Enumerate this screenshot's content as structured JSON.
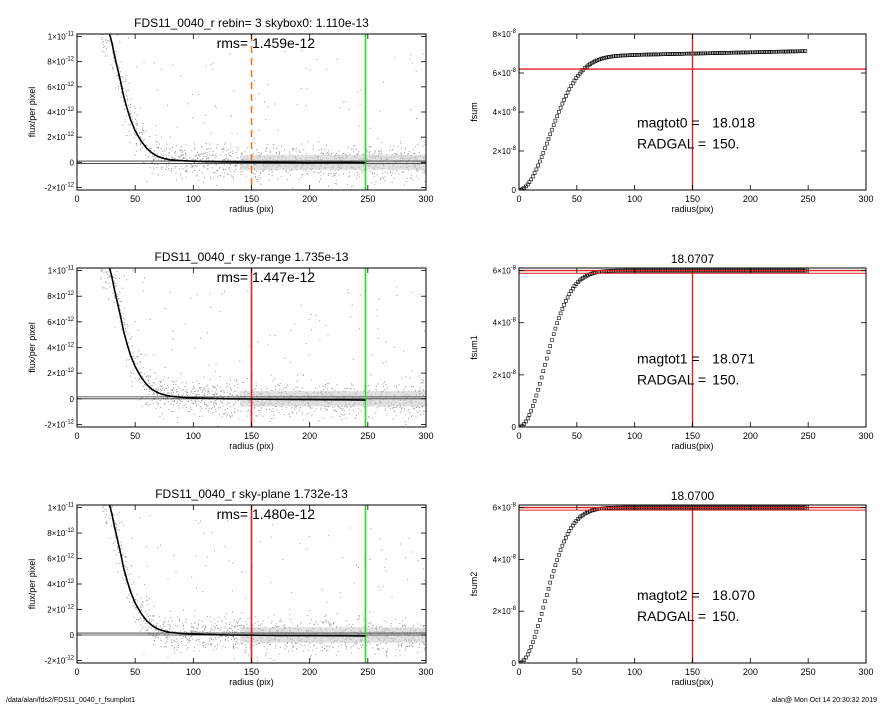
{
  "footer": {
    "path": "/data/alan/fds2/FDS11_0040_r_fsumplot1",
    "stamp": "alan@  Mon Oct 14 20:30:32 2019"
  },
  "colors": {
    "scatter": "#9a9a9a",
    "profile": "#000000",
    "red": "#dd2222",
    "green": "#22dd22",
    "orange": "#f07b1c",
    "scatter_band": "#c8c8c8"
  },
  "chart_data": [
    {
      "type": "scatter",
      "panel": "left-1",
      "title": "FDS11_0040_r rebin= 3    skybox0:  1.110e-13",
      "annotation": "rms= 1.459e-12",
      "xlabel": "radius (pix)",
      "ylabel": "flux/per pixel",
      "xlim": [
        0,
        300
      ],
      "ylim": [
        -2.2e-12,
        1.02e-11
      ],
      "xticks": [
        0,
        50,
        100,
        150,
        200,
        250,
        300
      ],
      "yticks": [
        {
          "v": 1e-11,
          "m": "1×10",
          "e": "-11"
        },
        {
          "v": 8e-12,
          "m": "8×10",
          "e": "-12"
        },
        {
          "v": 6e-12,
          "m": "6×10",
          "e": "-12"
        },
        {
          "v": 4e-12,
          "m": "4×10",
          "e": "-12"
        },
        {
          "v": 2e-12,
          "m": "2×10",
          "e": "-12"
        },
        {
          "v": 0,
          "m": "0",
          "e": ""
        },
        {
          "v": -2e-12,
          "m": "-2×10",
          "e": "-12"
        }
      ],
      "profile": {
        "x": [
          28,
          30,
          32,
          35,
          38,
          40,
          43,
          46,
          50,
          55,
          60,
          65,
          70,
          75,
          80,
          90,
          100,
          110,
          120,
          130,
          150,
          170,
          200,
          230,
          248
        ],
        "y": [
          1.02e-11,
          9.5e-12,
          8.6e-12,
          7.4e-12,
          6.2e-12,
          5.3e-12,
          4.3e-12,
          3.4e-12,
          2.5e-12,
          1.7e-12,
          1.1e-12,
          7e-13,
          4.5e-13,
          3e-13,
          2e-13,
          1.3e-13,
          9e-14,
          6e-14,
          4e-14,
          3e-14,
          1e-14,
          0,
          -2e-14,
          -1e-14,
          -2e-14
        ]
      },
      "hlines": [
        1e-13,
        -1e-13
      ],
      "vlines": [
        {
          "x": 150,
          "color": "orange",
          "dashed": true
        },
        {
          "x": 248,
          "color": "green",
          "dashed": false
        }
      ]
    },
    {
      "type": "line",
      "panel": "right-1",
      "title": "",
      "xlabel": "radius(pix)",
      "ylabel": "fsum",
      "xlim": [
        0,
        300
      ],
      "ylim": [
        0,
        8e-08
      ],
      "xticks": [
        0,
        50,
        100,
        150,
        200,
        250,
        300
      ],
      "yticks": [
        {
          "v": 8e-08,
          "m": "8×10",
          "e": "-8"
        },
        {
          "v": 6e-08,
          "m": "6×10",
          "e": "-8"
        },
        {
          "v": 4e-08,
          "m": "4×10",
          "e": "-8"
        },
        {
          "v": 2e-08,
          "m": "2×10",
          "e": "-8"
        },
        {
          "v": 0,
          "m": "0",
          "e": ""
        }
      ],
      "curve": {
        "x_max": 248,
        "asymptote": 6.8e-08,
        "scale": 35,
        "slope": 1.3e-11
      },
      "hline": 6.2e-08,
      "vline": 150,
      "labels": [
        {
          "name": "magtot0 =",
          "value": "18.018"
        },
        {
          "name": "RADGAL =",
          "value": "150."
        }
      ]
    },
    {
      "type": "scatter",
      "panel": "left-2",
      "title": "FDS11_0040_r sky-range  1.735e-13",
      "annotation": "rms= 1.447e-12",
      "xlabel": "radius (pix)",
      "ylabel": "flux/per pixel",
      "xlim": [
        0,
        300
      ],
      "ylim": [
        -2.2e-12,
        1.02e-11
      ],
      "xticks": [
        0,
        50,
        100,
        150,
        200,
        250,
        300
      ],
      "yticks": [
        {
          "v": 1e-11,
          "m": "1×10",
          "e": "-11"
        },
        {
          "v": 8e-12,
          "m": "8×10",
          "e": "-12"
        },
        {
          "v": 6e-12,
          "m": "6×10",
          "e": "-12"
        },
        {
          "v": 4e-12,
          "m": "4×10",
          "e": "-12"
        },
        {
          "v": 2e-12,
          "m": "2×10",
          "e": "-12"
        },
        {
          "v": 0,
          "m": "0",
          "e": ""
        },
        {
          "v": -2e-12,
          "m": "-2×10",
          "e": "-12"
        }
      ],
      "profile": {
        "x": [
          28,
          30,
          32,
          35,
          38,
          40,
          43,
          46,
          50,
          55,
          60,
          65,
          70,
          75,
          80,
          90,
          100,
          110,
          120,
          130,
          150,
          170,
          200,
          230,
          248
        ],
        "y": [
          1.02e-11,
          9.5e-12,
          8.6e-12,
          7.4e-12,
          6.2e-12,
          5.3e-12,
          4.3e-12,
          3.4e-12,
          2.5e-12,
          1.7e-12,
          1.1e-12,
          7e-13,
          4.5e-13,
          3e-13,
          2e-13,
          1.2e-13,
          7e-14,
          4e-14,
          2e-14,
          0,
          -2e-14,
          -4e-14,
          -6e-14,
          -8e-14,
          -1e-13
        ]
      },
      "hlines": [
        1.5e-13,
        0
      ],
      "vlines": [
        {
          "x": 150,
          "color": "red",
          "dashed": false
        },
        {
          "x": 248,
          "color": "green",
          "dashed": false
        }
      ]
    },
    {
      "type": "line",
      "panel": "right-2",
      "title": "18.0707",
      "xlabel": "radius(pix)",
      "ylabel": "fsum1",
      "xlim": [
        0,
        300
      ],
      "ylim": [
        0,
        6.1e-08
      ],
      "xticks": [
        0,
        50,
        100,
        150,
        200,
        250,
        300
      ],
      "yticks": [
        {
          "v": 6e-08,
          "m": "6×10",
          "e": "-8"
        },
        {
          "v": 4e-08,
          "m": "4×10",
          "e": "-8"
        },
        {
          "v": 2e-08,
          "m": "2×10",
          "e": "-8"
        },
        {
          "v": 0,
          "m": "0",
          "e": ""
        }
      ],
      "curve": {
        "x_max": 248,
        "asymptote": 6e-08,
        "scale": 30,
        "slope": 0
      },
      "hline": 6e-08,
      "hline2": 5.9e-08,
      "vline": 150,
      "labels": [
        {
          "name": "magtot1 =",
          "value": "18.071"
        },
        {
          "name": "RADGAL =",
          "value": "150."
        }
      ]
    },
    {
      "type": "scatter",
      "panel": "left-3",
      "title": "FDS11_0040_r sky-plane  1.732e-13",
      "annotation": "rms= 1.480e-12",
      "xlabel": "radius (pix)",
      "ylabel": "flux/per pixel",
      "xlim": [
        0,
        300
      ],
      "ylim": [
        -2.2e-12,
        1.02e-11
      ],
      "xticks": [
        0,
        50,
        100,
        150,
        200,
        250,
        300
      ],
      "yticks": [
        {
          "v": 1e-11,
          "m": "1×10",
          "e": "-11"
        },
        {
          "v": 8e-12,
          "m": "8×10",
          "e": "-12"
        },
        {
          "v": 6e-12,
          "m": "6×10",
          "e": "-12"
        },
        {
          "v": 4e-12,
          "m": "4×10",
          "e": "-12"
        },
        {
          "v": 2e-12,
          "m": "2×10",
          "e": "-12"
        },
        {
          "v": 0,
          "m": "0",
          "e": ""
        },
        {
          "v": -2e-12,
          "m": "-2×10",
          "e": "-12"
        }
      ],
      "profile": {
        "x": [
          28,
          30,
          32,
          35,
          38,
          40,
          43,
          46,
          50,
          55,
          60,
          65,
          70,
          75,
          80,
          90,
          100,
          110,
          120,
          130,
          150,
          170,
          200,
          230,
          248
        ],
        "y": [
          1.02e-11,
          9.5e-12,
          8.6e-12,
          7.4e-12,
          6.2e-12,
          5.3e-12,
          4.3e-12,
          3.4e-12,
          2.5e-12,
          1.7e-12,
          1.1e-12,
          7e-13,
          4.5e-13,
          3e-13,
          2e-13,
          1.2e-13,
          7e-14,
          4e-14,
          2e-14,
          0,
          -2e-14,
          -4e-14,
          -5e-14,
          -6e-14,
          -8e-14
        ]
      },
      "hlines": [
        1.5e-13,
        0
      ],
      "vlines": [
        {
          "x": 150,
          "color": "red",
          "dashed": false
        },
        {
          "x": 248,
          "color": "green",
          "dashed": false
        }
      ]
    },
    {
      "type": "line",
      "panel": "right-3",
      "title": "18.0700",
      "xlabel": "radius(pix)",
      "ylabel": "fsum2",
      "xlim": [
        0,
        300
      ],
      "ylim": [
        0,
        6.1e-08
      ],
      "xticks": [
        0,
        50,
        100,
        150,
        200,
        250,
        300
      ],
      "yticks": [
        {
          "v": 6e-08,
          "m": "6×10",
          "e": "-8"
        },
        {
          "v": 4e-08,
          "m": "4×10",
          "e": "-8"
        },
        {
          "v": 2e-08,
          "m": "2×10",
          "e": "-8"
        },
        {
          "v": 0,
          "m": "0",
          "e": ""
        }
      ],
      "curve": {
        "x_max": 248,
        "asymptote": 6e-08,
        "scale": 30,
        "slope": 0
      },
      "hline": 6e-08,
      "hline2": 5.9e-08,
      "vline": 150,
      "labels": [
        {
          "name": "magtot2 =",
          "value": "18.070"
        },
        {
          "name": "RADGAL =",
          "value": "150."
        }
      ]
    }
  ]
}
